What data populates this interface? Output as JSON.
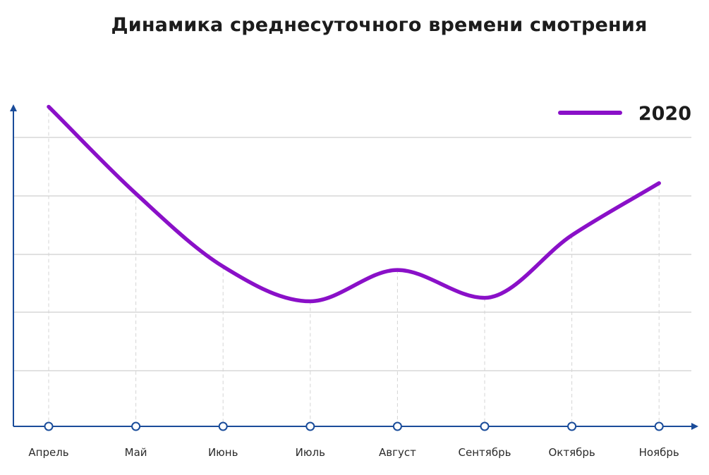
{
  "chart_data": {
    "type": "line",
    "title": "Динамика среднесуточного времени смотрения",
    "xlabel": "",
    "ylabel": "",
    "categories": [
      "Апрель",
      "Май",
      "Июнь",
      "Июль",
      "Август",
      "Сентябрь",
      "Октябрь",
      "Ноябрь"
    ],
    "series": [
      {
        "name": "2020",
        "color": "#8a10c8",
        "values": [
          0.92,
          0.67,
          0.46,
          0.36,
          0.45,
          0.37,
          0.55,
          0.7
        ]
      }
    ],
    "ylim": [
      0,
      1
    ],
    "grid": true,
    "legend_position": "top-right",
    "colors": {
      "axis": "#1a4c9a",
      "grid": "#cfcfcf",
      "vertical_guides": "#d4d4d4",
      "marker_fill": "#ffffff"
    }
  }
}
